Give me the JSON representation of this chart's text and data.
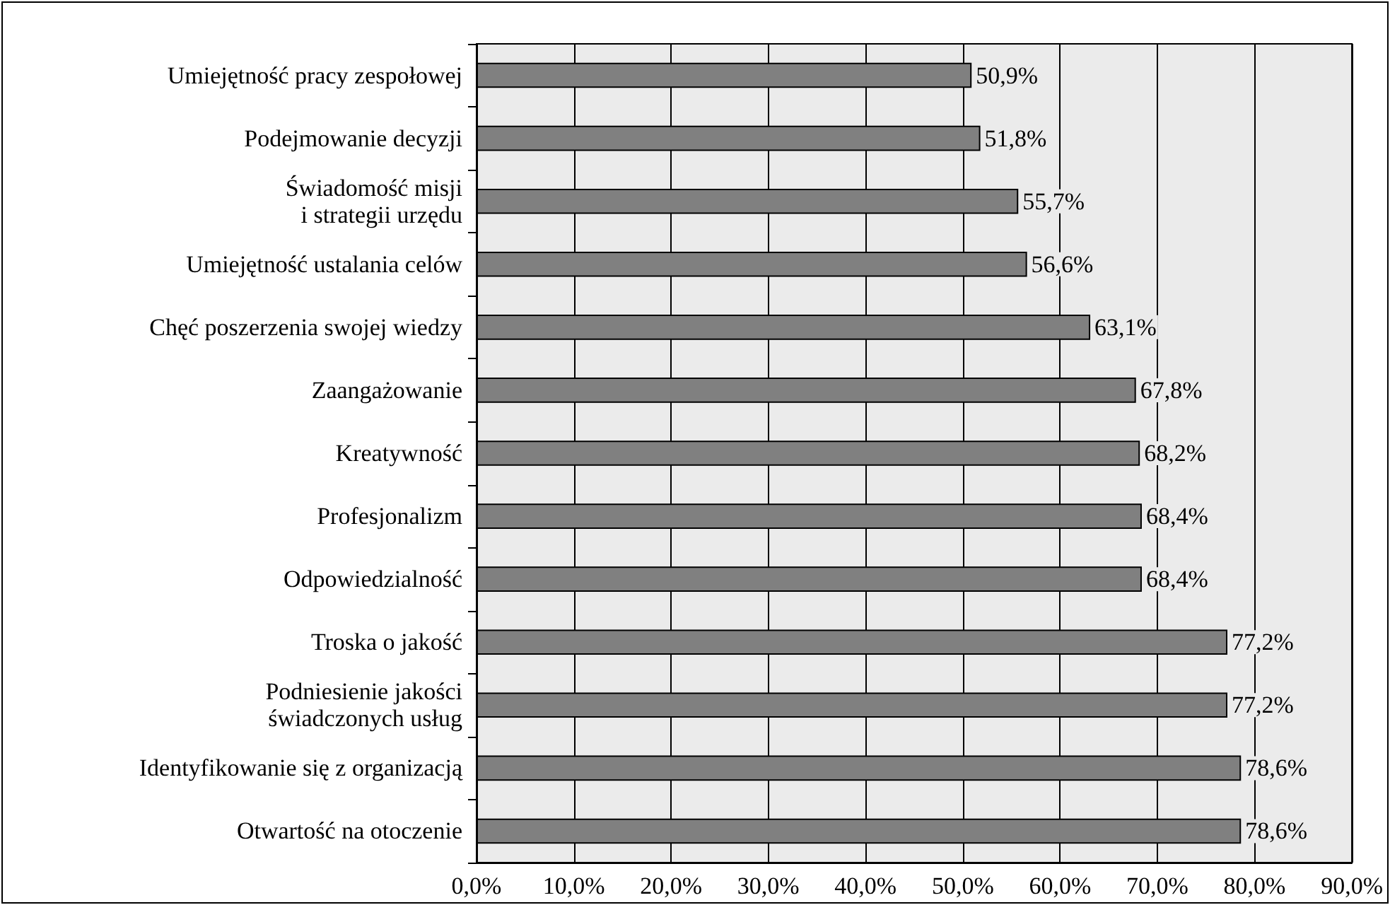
{
  "chart_data": {
    "type": "bar",
    "orientation": "horizontal",
    "categories": [
      "Umiejętność pracy zespołowej",
      "Podejmowanie decyzji",
      "Świadomość misji\ni strategii urzędu",
      "Umiejętność ustalania celów",
      "Chęć poszerzenia swojej wiedzy",
      "Zaangażowanie",
      "Kreatywność",
      "Profesjonalizm",
      "Odpowiedzialność",
      "Troska o jakość",
      "Podniesienie jakości\nświadczonych usług",
      "Identyfikowanie się z organizacją",
      "Otwartość na otoczenie"
    ],
    "values": [
      50.9,
      51.8,
      55.7,
      56.6,
      63.1,
      67.8,
      68.2,
      68.4,
      68.4,
      77.2,
      77.2,
      78.6,
      78.6
    ],
    "value_labels": [
      "50,9%",
      "51,8%",
      "55,7%",
      "56,6%",
      "63,1%",
      "67,8%",
      "68,2%",
      "68,4%",
      "68,4%",
      "77,2%",
      "77,2%",
      "78,6%",
      "78,6%"
    ],
    "color": "#808080",
    "xlim": [
      0,
      90
    ],
    "xticks": [
      {
        "value": 0,
        "label": "0,0%"
      },
      {
        "value": 10,
        "label": "10,0%"
      },
      {
        "value": 20,
        "label": "20,0%"
      },
      {
        "value": 30,
        "label": "30,0%"
      },
      {
        "value": 40,
        "label": "40,0%"
      },
      {
        "value": 50,
        "label": "50,0%"
      },
      {
        "value": 60,
        "label": "60,0%"
      },
      {
        "value": 70,
        "label": "70,0%"
      },
      {
        "value": 80,
        "label": "80,0%"
      },
      {
        "value": 90,
        "label": "90,0%"
      }
    ],
    "grid": "x"
  }
}
